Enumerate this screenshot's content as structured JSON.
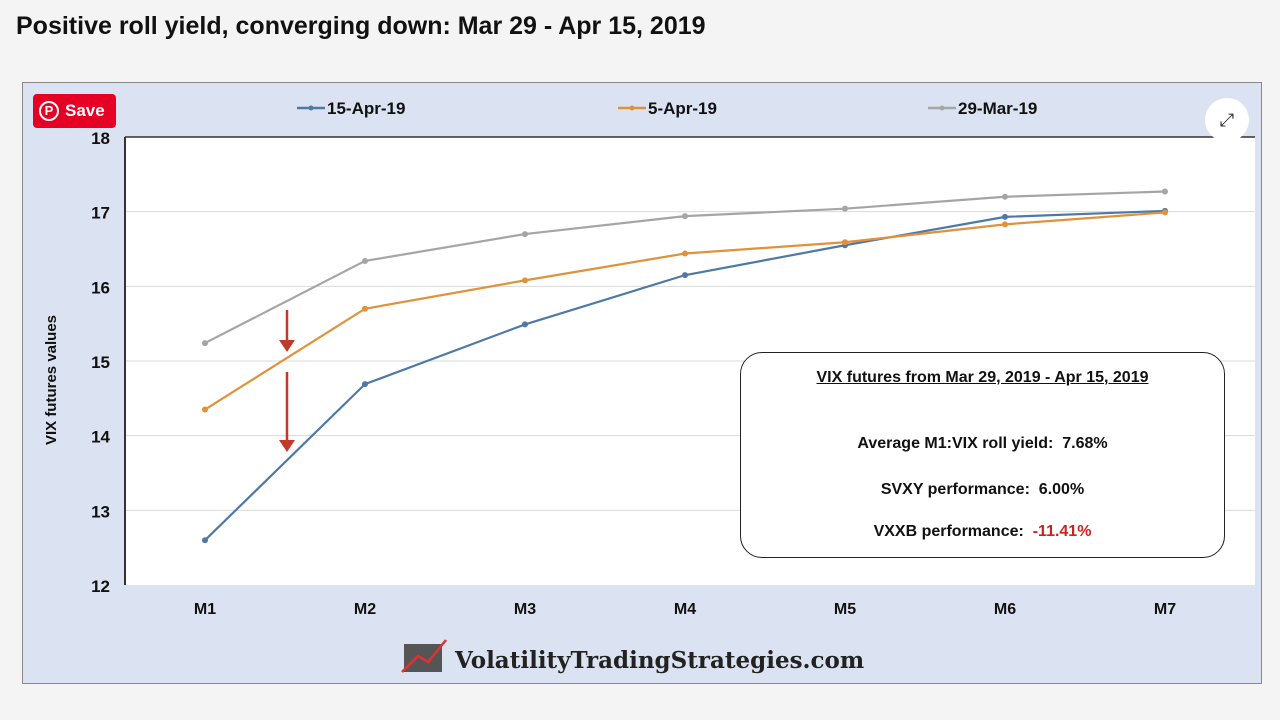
{
  "title": "Positive roll yield, converging down:  Mar 29 - Apr 15, 2019",
  "save_button": "Save",
  "icons": {
    "save": "pinterest-icon",
    "expand": "expand-icon",
    "logo": "chart-logo-icon"
  },
  "watermark": "VolatilityTradingStrategies.com",
  "annotation": {
    "heading": "VIX futures from Mar 29, 2019  -  Apr 15, 2019",
    "roll_label": "Average M1:VIX roll yield:",
    "roll_value": "7.68%",
    "svxy_label": "SVXY performance:",
    "svxy_value": "6.00%",
    "vxxb_label": "VXXB performance:",
    "vxxb_value": "-11.41%",
    "negative_color": "#d02020"
  },
  "chart_data": {
    "type": "line",
    "title": "",
    "xlabel": "",
    "ylabel": "VIX futures values",
    "categories": [
      "M1",
      "M2",
      "M3",
      "M4",
      "M5",
      "M6",
      "M7"
    ],
    "ylim": [
      12,
      18
    ],
    "yticks": [
      "12",
      "13",
      "14",
      "15",
      "16",
      "17",
      "18"
    ],
    "grid": true,
    "legend": "top",
    "series": [
      {
        "name": "15-Apr-19",
        "color": "#4e79a7",
        "values": [
          12.6,
          14.69,
          15.49,
          16.15,
          16.55,
          16.93,
          17.01
        ]
      },
      {
        "name": "5-Apr-19",
        "color": "#e0923a",
        "values": [
          14.35,
          15.7,
          16.08,
          16.44,
          16.59,
          16.83,
          16.99
        ]
      },
      {
        "name": "29-Mar-19",
        "color": "#a5a5a5",
        "values": [
          15.24,
          16.34,
          16.7,
          16.94,
          17.04,
          17.2,
          17.27
        ]
      }
    ],
    "annotations": [
      {
        "type": "arrow",
        "color": "#c0392b",
        "from_series": "29-Mar-19",
        "to_series": "5-Apr-19"
      },
      {
        "type": "arrow",
        "color": "#c0392b",
        "from_series": "5-Apr-19",
        "to_series": "15-Apr-19"
      }
    ]
  }
}
